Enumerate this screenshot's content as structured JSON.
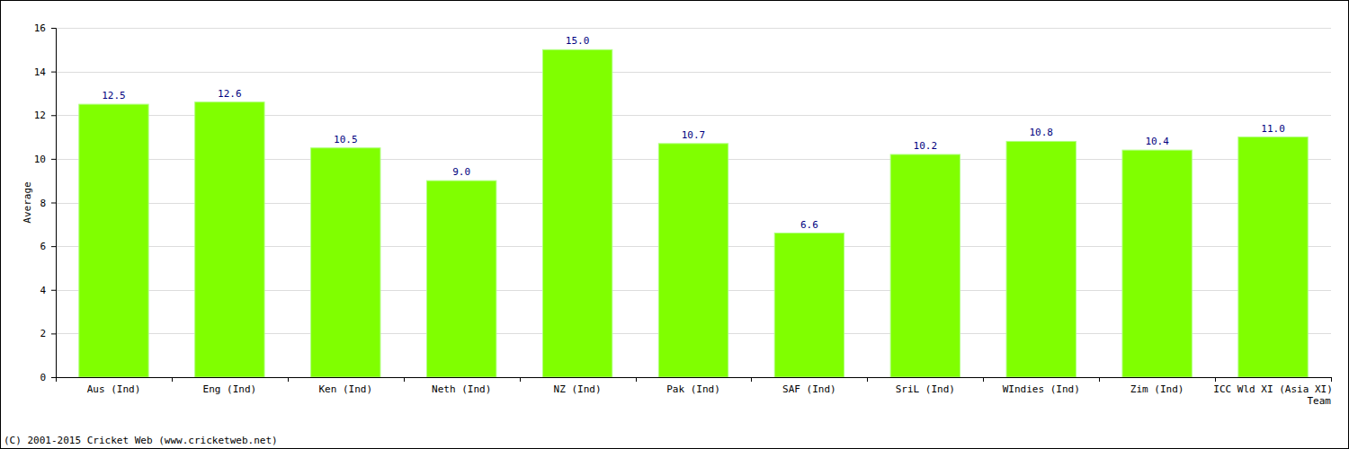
{
  "chart_data": {
    "type": "bar",
    "x_label": "Team",
    "y_label": "Average",
    "categories": [
      "Aus (Ind)",
      "Eng (Ind)",
      "Ken (Ind)",
      "Neth (Ind)",
      "NZ (Ind)",
      "Pak (Ind)",
      "SAF (Ind)",
      "SriL (Ind)",
      "WIndies (Ind)",
      "Zim (Ind)",
      "ICC Wld XI (Asia XI)"
    ],
    "values": [
      12.5,
      12.6,
      10.5,
      9.0,
      15.0,
      10.7,
      6.6,
      10.2,
      10.8,
      10.4,
      11.0
    ],
    "value_labels": [
      "12.5",
      "12.6",
      "10.5",
      "9.0",
      "15.0",
      "10.7",
      "6.6",
      "10.2",
      "10.8",
      "10.4",
      "11.0"
    ],
    "color": "#80ff00",
    "ylim": [
      0,
      16
    ],
    "yticks": [
      0,
      2,
      4,
      6,
      8,
      10,
      12,
      14,
      16
    ],
    "grid": true,
    "data_labels": true,
    "annotations": [
      "(C) 2001-2015 Cricket Web (www.cricketweb.net)"
    ]
  }
}
